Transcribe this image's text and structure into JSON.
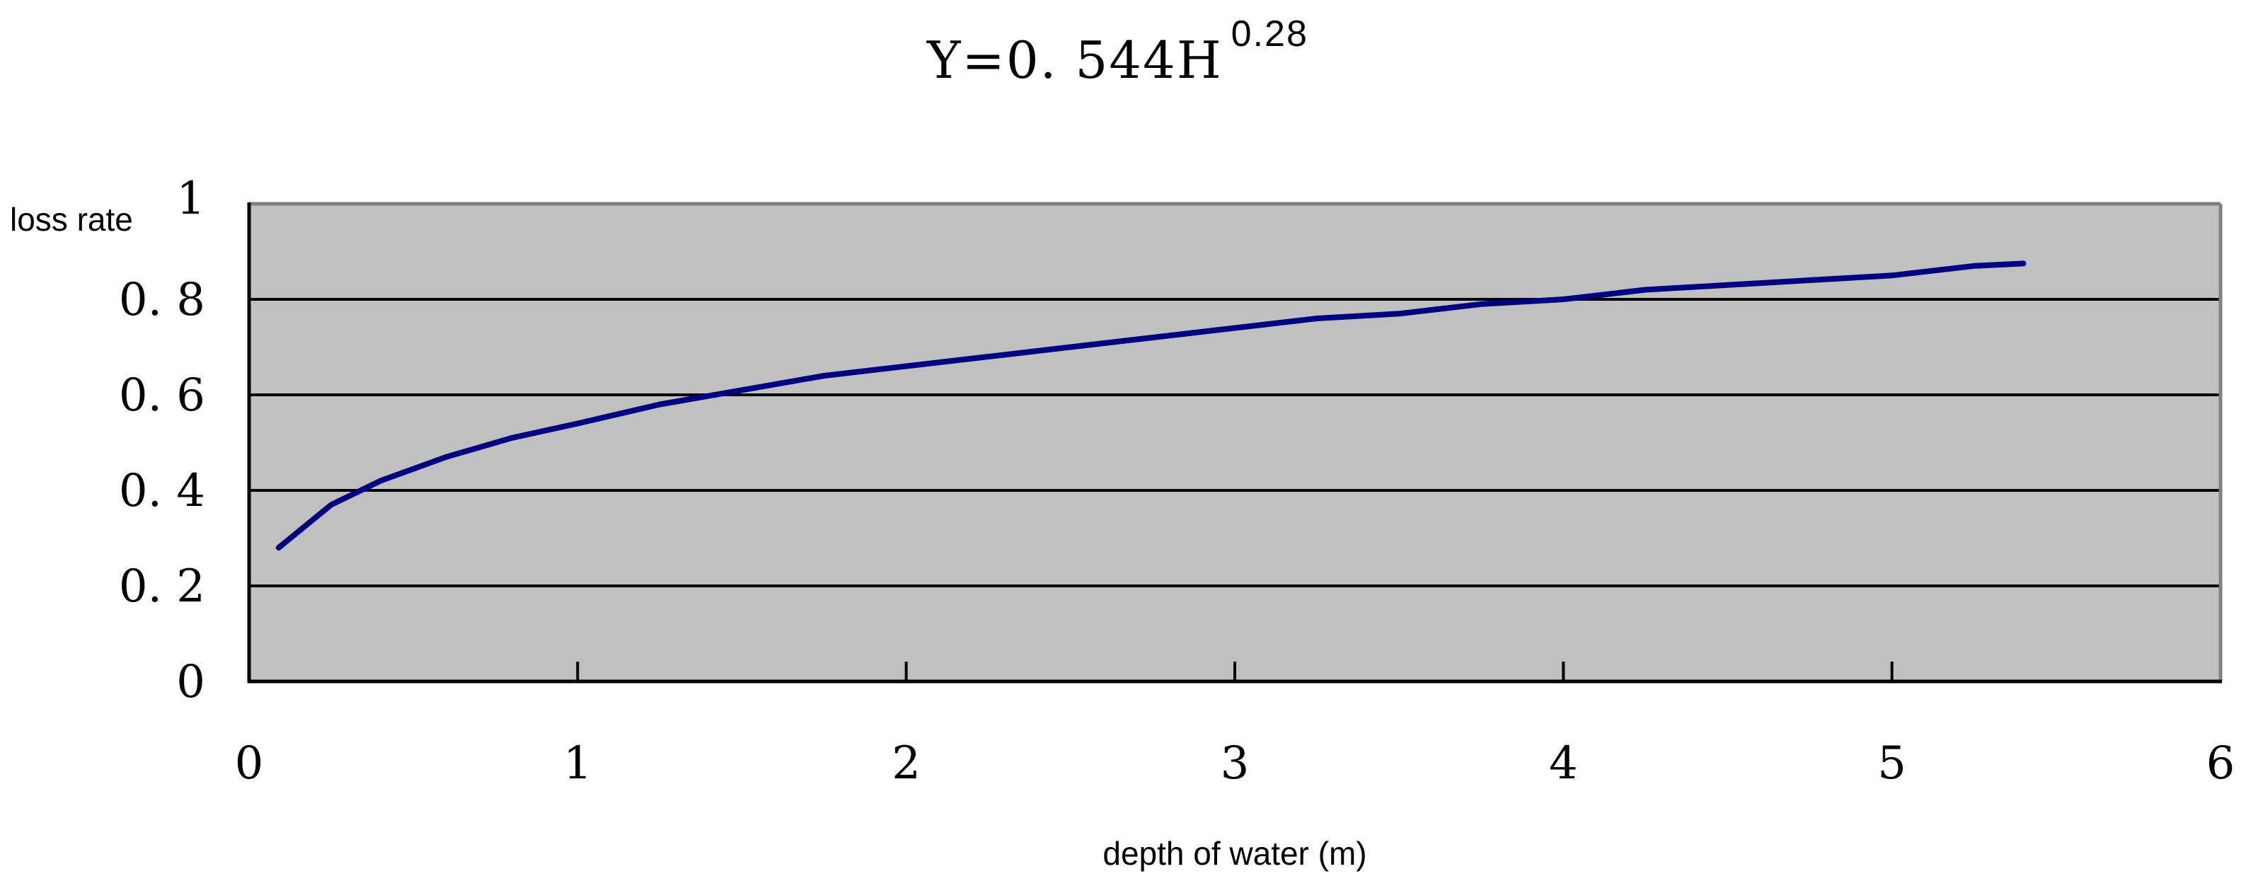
{
  "chart_data": {
    "type": "line",
    "title": "Y=0.544H^0.28",
    "title_base": "Y=0. 544H",
    "title_exponent": "0.28",
    "xlabel": "depth of water (m)",
    "ylabel": "loss rate",
    "xlim": [
      0,
      6
    ],
    "ylim": [
      0,
      1
    ],
    "x_ticks": [
      "0",
      "1",
      "2",
      "3",
      "4",
      "5",
      "6"
    ],
    "y_ticks": [
      "0",
      "0. 2",
      "0. 4",
      "0. 6",
      "0. 8",
      "1"
    ],
    "grid": {
      "horizontal": true,
      "vertical": false
    },
    "plot_background": "#c0c0c0",
    "line_color": "#000080",
    "legend": null,
    "series": [
      {
        "name": "loss rate",
        "x": [
          0.09,
          0.25,
          0.4,
          0.6,
          0.8,
          1.0,
          1.25,
          1.5,
          1.75,
          2.0,
          2.25,
          2.5,
          2.75,
          3.0,
          3.25,
          3.5,
          3.75,
          4.0,
          4.25,
          4.5,
          4.75,
          5.0,
          5.25,
          5.4
        ],
        "values": [
          0.28,
          0.37,
          0.42,
          0.47,
          0.51,
          0.54,
          0.58,
          0.61,
          0.64,
          0.66,
          0.68,
          0.7,
          0.72,
          0.74,
          0.76,
          0.77,
          0.79,
          0.8,
          0.82,
          0.83,
          0.84,
          0.85,
          0.87,
          0.875
        ]
      }
    ]
  }
}
